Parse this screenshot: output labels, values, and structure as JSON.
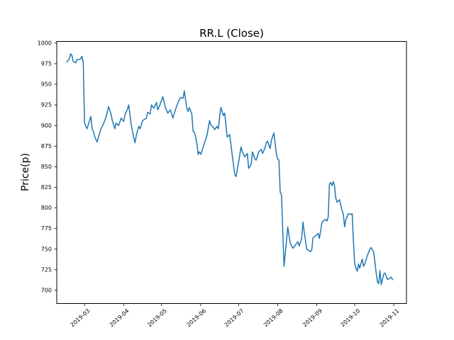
{
  "figure": {
    "title": "RR.L (Close)",
    "ylabel": "Price(p)",
    "line_color": "#1f77b4",
    "axis_color": "#000000",
    "background": "#ffffff"
  },
  "chart_data": {
    "type": "line",
    "title": "RR.L (Close)",
    "xlabel": "",
    "ylabel": "Price(p)",
    "series_name": "RR.L Close",
    "grid": false,
    "legend": "none",
    "y_ticks": [
      700,
      725,
      750,
      775,
      800,
      825,
      850,
      875,
      900,
      925,
      950,
      975,
      1000
    ],
    "ylim": [
      684,
      1002
    ],
    "xlim": [
      "2019-02-07",
      "2019-11-11"
    ],
    "x_ticks": [
      {
        "label": "2019-03",
        "date": "2019-03-01"
      },
      {
        "label": "2019-04",
        "date": "2019-04-01"
      },
      {
        "label": "2019-05",
        "date": "2019-05-01"
      },
      {
        "label": "2019-06",
        "date": "2019-06-01"
      },
      {
        "label": "2019-07",
        "date": "2019-07-01"
      },
      {
        "label": "2019-08",
        "date": "2019-08-01"
      },
      {
        "label": "2019-09",
        "date": "2019-09-01"
      },
      {
        "label": "2019-10",
        "date": "2019-10-01"
      },
      {
        "label": "2019-11",
        "date": "2019-11-01"
      }
    ],
    "points": [
      [
        "2019-02-15",
        977
      ],
      [
        "2019-02-17",
        981
      ],
      [
        "2019-02-18",
        987
      ],
      [
        "2019-02-19",
        985
      ],
      [
        "2019-02-20",
        978
      ],
      [
        "2019-02-22",
        976
      ],
      [
        "2019-02-23",
        980
      ],
      [
        "2019-02-25",
        980
      ],
      [
        "2019-02-26",
        981
      ],
      [
        "2019-02-27",
        984
      ],
      [
        "2019-02-28",
        976
      ],
      [
        "2019-03-01",
        903
      ],
      [
        "2019-03-03",
        896
      ],
      [
        "2019-03-04",
        901
      ],
      [
        "2019-03-06",
        911
      ],
      [
        "2019-03-07",
        896
      ],
      [
        "2019-03-08",
        893
      ],
      [
        "2019-03-09",
        887
      ],
      [
        "2019-03-10",
        883
      ],
      [
        "2019-03-11",
        880
      ],
      [
        "2019-03-13",
        891
      ],
      [
        "2019-03-14",
        896
      ],
      [
        "2019-03-16",
        902
      ],
      [
        "2019-03-18",
        910
      ],
      [
        "2019-03-19",
        916
      ],
      [
        "2019-03-20",
        923
      ],
      [
        "2019-03-22",
        914
      ],
      [
        "2019-03-23",
        906
      ],
      [
        "2019-03-25",
        896
      ],
      [
        "2019-03-26",
        903
      ],
      [
        "2019-03-28",
        900
      ],
      [
        "2019-03-30",
        909
      ],
      [
        "2019-04-01",
        905
      ],
      [
        "2019-04-02",
        913
      ],
      [
        "2019-04-04",
        920
      ],
      [
        "2019-04-05",
        925
      ],
      [
        "2019-04-07",
        901
      ],
      [
        "2019-04-09",
        885
      ],
      [
        "2019-04-10",
        879
      ],
      [
        "2019-04-11",
        888
      ],
      [
        "2019-04-13",
        899
      ],
      [
        "2019-04-14",
        896
      ],
      [
        "2019-04-16",
        906
      ],
      [
        "2019-04-19",
        909
      ],
      [
        "2019-04-20",
        916
      ],
      [
        "2019-04-22",
        914
      ],
      [
        "2019-04-23",
        925
      ],
      [
        "2019-04-25",
        921
      ],
      [
        "2019-04-27",
        928
      ],
      [
        "2019-04-28",
        919
      ],
      [
        "2019-04-30",
        926
      ],
      [
        "2019-05-02",
        935
      ],
      [
        "2019-05-04",
        922
      ],
      [
        "2019-05-06",
        915
      ],
      [
        "2019-05-08",
        919
      ],
      [
        "2019-05-10",
        909
      ],
      [
        "2019-05-12",
        919
      ],
      [
        "2019-05-14",
        928
      ],
      [
        "2019-05-16",
        934
      ],
      [
        "2019-05-18",
        933
      ],
      [
        "2019-05-19",
        942
      ],
      [
        "2019-05-21",
        921
      ],
      [
        "2019-05-22",
        917
      ],
      [
        "2019-05-23",
        922
      ],
      [
        "2019-05-25",
        914
      ],
      [
        "2019-05-26",
        893
      ],
      [
        "2019-05-27",
        892
      ],
      [
        "2019-05-28",
        886
      ],
      [
        "2019-05-29",
        878
      ],
      [
        "2019-05-30",
        865
      ],
      [
        "2019-05-31",
        868
      ],
      [
        "2019-06-01",
        865
      ],
      [
        "2019-06-02",
        869
      ],
      [
        "2019-06-04",
        879
      ],
      [
        "2019-06-06",
        888
      ],
      [
        "2019-06-07",
        897
      ],
      [
        "2019-06-08",
        906
      ],
      [
        "2019-06-09",
        901
      ],
      [
        "2019-06-11",
        898
      ],
      [
        "2019-06-12",
        895
      ],
      [
        "2019-06-14",
        899
      ],
      [
        "2019-06-15",
        896
      ],
      [
        "2019-06-16",
        910
      ],
      [
        "2019-06-17",
        922
      ],
      [
        "2019-06-19",
        912
      ],
      [
        "2019-06-20",
        915
      ],
      [
        "2019-06-22",
        886
      ],
      [
        "2019-06-24",
        889
      ],
      [
        "2019-06-26",
        864
      ],
      [
        "2019-06-28",
        841
      ],
      [
        "2019-06-29",
        838
      ],
      [
        "2019-07-01",
        855
      ],
      [
        "2019-07-03",
        874
      ],
      [
        "2019-07-04",
        868
      ],
      [
        "2019-07-06",
        862
      ],
      [
        "2019-07-08",
        866
      ],
      [
        "2019-07-09",
        848
      ],
      [
        "2019-07-11",
        853
      ],
      [
        "2019-07-12",
        868
      ],
      [
        "2019-07-14",
        859
      ],
      [
        "2019-07-15",
        858
      ],
      [
        "2019-07-17",
        868
      ],
      [
        "2019-07-19",
        871
      ],
      [
        "2019-07-20",
        866
      ],
      [
        "2019-07-22",
        873
      ],
      [
        "2019-07-23",
        879
      ],
      [
        "2019-07-24",
        881
      ],
      [
        "2019-07-26",
        872
      ],
      [
        "2019-07-27",
        882
      ],
      [
        "2019-07-29",
        891
      ],
      [
        "2019-07-31",
        865
      ],
      [
        "2019-08-01",
        859
      ],
      [
        "2019-08-02",
        858
      ],
      [
        "2019-08-03",
        819
      ],
      [
        "2019-08-04",
        816
      ],
      [
        "2019-08-06",
        729
      ],
      [
        "2019-08-09",
        777
      ],
      [
        "2019-08-10",
        766
      ],
      [
        "2019-08-11",
        757
      ],
      [
        "2019-08-13",
        751
      ],
      [
        "2019-08-15",
        755
      ],
      [
        "2019-08-17",
        759
      ],
      [
        "2019-08-18",
        754
      ],
      [
        "2019-08-20",
        763
      ],
      [
        "2019-08-21",
        783
      ],
      [
        "2019-08-22",
        771
      ],
      [
        "2019-08-24",
        750
      ],
      [
        "2019-08-26",
        748
      ],
      [
        "2019-08-27",
        747
      ],
      [
        "2019-08-28",
        749
      ],
      [
        "2019-08-29",
        764
      ],
      [
        "2019-08-31",
        766
      ],
      [
        "2019-09-02",
        769
      ],
      [
        "2019-09-03",
        763
      ],
      [
        "2019-09-05",
        782
      ],
      [
        "2019-09-06",
        784
      ],
      [
        "2019-09-08",
        786
      ],
      [
        "2019-09-09",
        784
      ],
      [
        "2019-09-10",
        789
      ],
      [
        "2019-09-11",
        829
      ],
      [
        "2019-09-12",
        831
      ],
      [
        "2019-09-13",
        827
      ],
      [
        "2019-09-14",
        832
      ],
      [
        "2019-09-15",
        827
      ],
      [
        "2019-09-16",
        812
      ],
      [
        "2019-09-17",
        807
      ],
      [
        "2019-09-19",
        810
      ],
      [
        "2019-09-21",
        797
      ],
      [
        "2019-09-22",
        792
      ],
      [
        "2019-09-23",
        777
      ],
      [
        "2019-09-24",
        786
      ],
      [
        "2019-09-26",
        793
      ],
      [
        "2019-09-28",
        792
      ],
      [
        "2019-09-29",
        793
      ],
      [
        "2019-09-30",
        760
      ],
      [
        "2019-10-01",
        732
      ],
      [
        "2019-10-02",
        727
      ],
      [
        "2019-10-03",
        723
      ],
      [
        "2019-10-04",
        732
      ],
      [
        "2019-10-05",
        727
      ],
      [
        "2019-10-07",
        738
      ],
      [
        "2019-10-08",
        729
      ],
      [
        "2019-10-09",
        732
      ],
      [
        "2019-10-11",
        742
      ],
      [
        "2019-10-13",
        750
      ],
      [
        "2019-10-14",
        752
      ],
      [
        "2019-10-15",
        749
      ],
      [
        "2019-10-16",
        747
      ],
      [
        "2019-10-18",
        721
      ],
      [
        "2019-10-19",
        710
      ],
      [
        "2019-10-20",
        708
      ],
      [
        "2019-10-21",
        724
      ],
      [
        "2019-10-22",
        707
      ],
      [
        "2019-10-24",
        720
      ],
      [
        "2019-10-25",
        721
      ],
      [
        "2019-10-27",
        713
      ],
      [
        "2019-10-28",
        714
      ],
      [
        "2019-10-30",
        716
      ],
      [
        "2019-10-31",
        713
      ]
    ]
  }
}
